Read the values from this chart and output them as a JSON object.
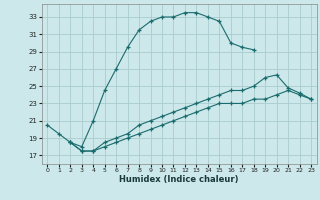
{
  "xlabel": "Humidex (Indice chaleur)",
  "bg_color": "#cce8ea",
  "grid_color": "#aaccce",
  "line_color": "#1a6b6e",
  "series": [
    {
      "x": [
        0,
        1,
        2,
        3,
        4,
        5,
        6,
        7,
        8,
        9,
        10,
        11,
        12,
        13,
        14,
        15,
        16,
        17,
        18
      ],
      "y": [
        20.5,
        19.5,
        18.5,
        18.0,
        21.0,
        24.5,
        27.0,
        29.5,
        31.5,
        32.5,
        33.0,
        33.0,
        33.5,
        33.5,
        33.0,
        32.5,
        30.0,
        29.5,
        29.2
      ]
    },
    {
      "x": [
        2,
        3,
        4,
        5,
        6,
        7,
        8,
        9,
        10,
        11,
        12,
        13,
        14,
        15,
        16,
        17,
        18,
        19,
        20,
        21,
        22,
        23
      ],
      "y": [
        18.5,
        17.5,
        17.5,
        18.5,
        19.0,
        19.5,
        20.5,
        21.0,
        21.5,
        22.0,
        22.5,
        23.0,
        23.5,
        24.0,
        24.5,
        24.5,
        25.0,
        26.0,
        26.3,
        24.8,
        24.2,
        23.5
      ]
    },
    {
      "x": [
        2,
        3,
        4,
        5,
        6,
        7,
        8,
        9,
        10,
        11,
        12,
        13,
        14,
        15,
        16,
        17,
        18,
        19,
        20,
        21,
        22,
        23
      ],
      "y": [
        18.5,
        17.5,
        17.5,
        18.0,
        18.5,
        19.0,
        19.5,
        20.0,
        20.5,
        21.0,
        21.5,
        22.0,
        22.5,
        23.0,
        23.0,
        23.0,
        23.5,
        23.5,
        24.0,
        24.5,
        24.0,
        23.5
      ]
    }
  ],
  "yticks": [
    17,
    19,
    21,
    23,
    25,
    27,
    29,
    31,
    33
  ],
  "xticks": [
    0,
    1,
    2,
    3,
    4,
    5,
    6,
    7,
    8,
    9,
    10,
    11,
    12,
    13,
    14,
    15,
    16,
    17,
    18,
    19,
    20,
    21,
    22,
    23
  ],
  "xlim": [
    -0.5,
    23.5
  ],
  "ylim": [
    16.0,
    34.5
  ]
}
